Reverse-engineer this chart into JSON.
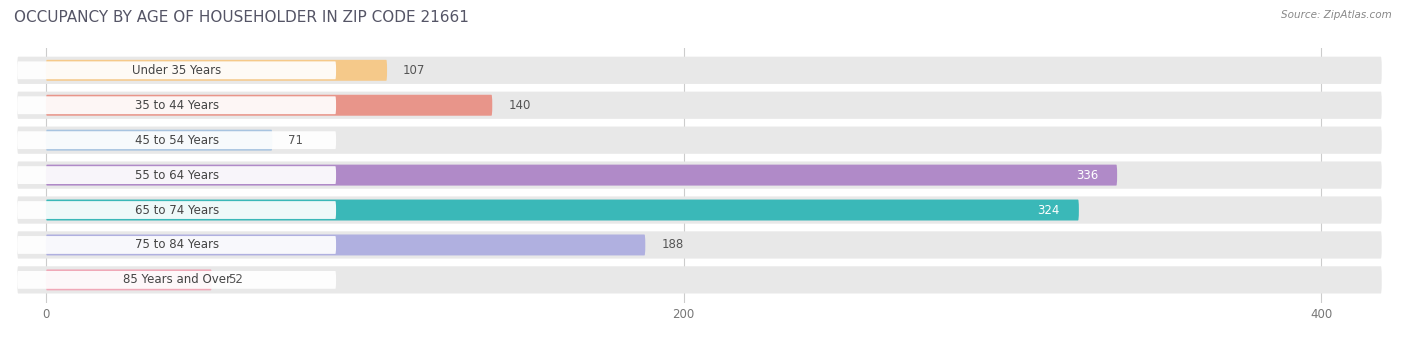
{
  "title": "OCCUPANCY BY AGE OF HOUSEHOLDER IN ZIP CODE 21661",
  "source": "Source: ZipAtlas.com",
  "categories": [
    "Under 35 Years",
    "35 to 44 Years",
    "45 to 54 Years",
    "55 to 64 Years",
    "65 to 74 Years",
    "75 to 84 Years",
    "85 Years and Over"
  ],
  "values": [
    107,
    140,
    71,
    336,
    324,
    188,
    52
  ],
  "bar_colors": [
    "#f5c98a",
    "#e8958a",
    "#a8c4e0",
    "#b08ac8",
    "#3ab8b8",
    "#b0b0e0",
    "#f0a8b8"
  ],
  "bar_bg_color": "#e8e8e8",
  "xlim": [
    -10,
    420
  ],
  "xticks": [
    0,
    200,
    400
  ],
  "title_fontsize": 11,
  "label_fontsize": 8.5,
  "value_fontsize": 8.5,
  "background_color": "#ffffff",
  "bar_height": 0.6
}
